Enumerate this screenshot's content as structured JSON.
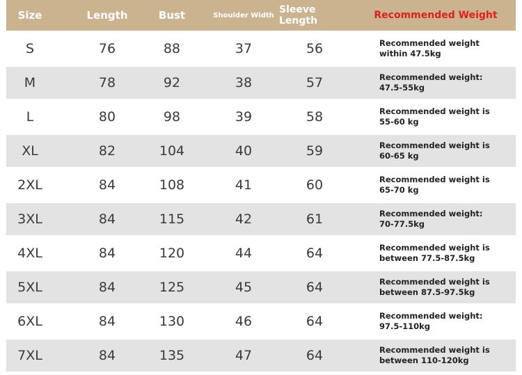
{
  "table": {
    "header": [
      "Size",
      "Length",
      "Bust",
      "Shoulder Width",
      "Sleeve Length",
      "Recommended Weight"
    ],
    "rows": [
      [
        "S",
        76,
        88,
        37,
        56,
        "Recommended weight within 47.5kg"
      ],
      [
        "M",
        78,
        92,
        38,
        57,
        "Recommended weight: 47.5-55kg"
      ],
      [
        "L",
        80,
        98,
        39,
        58,
        "Recommended weight is 55-60 kg"
      ],
      [
        "XL",
        82,
        104,
        40,
        59,
        "Recommended weight is 60-65 kg"
      ],
      [
        "2XL",
        84,
        108,
        41,
        60,
        "Recommended weight is 65-70 kg"
      ],
      [
        "3XL",
        84,
        115,
        42,
        61,
        "Recommended weight: 70-77.5kg"
      ],
      [
        "4XL",
        84,
        120,
        44,
        64,
        "Recommended weight is between 77.5-87.5kg"
      ],
      [
        "5XL",
        84,
        125,
        45,
        64,
        "Recommended weight is between 87.5-97.5kg"
      ],
      [
        "6XL",
        84,
        130,
        46,
        64,
        "Recommended weight: 97.5-110kg"
      ],
      [
        "7XL",
        84,
        135,
        47,
        64,
        "Recommended weight is between 110-120kg"
      ]
    ]
  }
}
